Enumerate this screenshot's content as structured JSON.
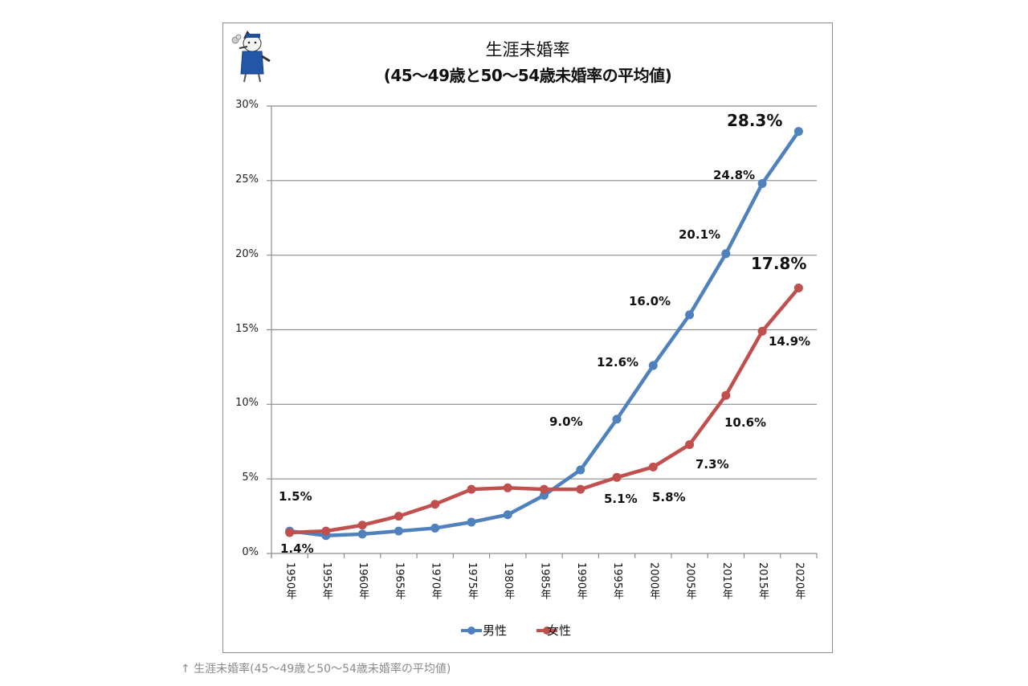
{
  "chart": {
    "title_line1": "生涯未婚率",
    "title_line2": "(45～49歳と50～54歳未婚率の平均値)",
    "mascot_icon": "cat-mascot-icon"
  },
  "caption": "↑ 生涯未婚率(45～49歳と50～54歳未婚率の平均値)",
  "legend": [
    {
      "label": "男性",
      "color": "#4f81bd"
    },
    {
      "label": "女性",
      "color": "#c0504d"
    }
  ],
  "y_ticks": [
    "0%",
    "5%",
    "10%",
    "15%",
    "20%",
    "25%",
    "30%"
  ],
  "x_ticks": [
    "1950年",
    "1955年",
    "1960年",
    "1965年",
    "1970年",
    "1975年",
    "1980年",
    "1985年",
    "1990年",
    "1995年",
    "2000年",
    "2005年",
    "2010年",
    "2015年",
    "2020年"
  ],
  "data_labels": {
    "male": {
      "1950": "1.5%",
      "1995": "9.0%",
      "2000": "12.6%",
      "2005": "16.0%",
      "2010": "20.1%",
      "2015": "24.8%",
      "2020": "28.3%"
    },
    "female": {
      "1950": "1.4%",
      "1995": "5.1%",
      "2000": "5.8%",
      "2005": "7.3%",
      "2010": "10.6%",
      "2015": "14.9%",
      "2020": "17.8%"
    }
  },
  "chart_data": {
    "type": "line",
    "title": "生涯未婚率 (45～49歳と50～54歳未婚率の平均値)",
    "xlabel": "",
    "ylabel": "",
    "categories": [
      "1950年",
      "1955年",
      "1960年",
      "1965年",
      "1970年",
      "1975年",
      "1980年",
      "1985年",
      "1990年",
      "1995年",
      "2000年",
      "2005年",
      "2010年",
      "2015年",
      "2020年"
    ],
    "series": [
      {
        "name": "男性",
        "color": "#4f81bd",
        "values": [
          1.5,
          1.2,
          1.3,
          1.5,
          1.7,
          2.1,
          2.6,
          3.9,
          5.6,
          9.0,
          12.6,
          16.0,
          20.1,
          24.8,
          28.3
        ]
      },
      {
        "name": "女性",
        "color": "#c0504d",
        "values": [
          1.4,
          1.5,
          1.9,
          2.5,
          3.3,
          4.3,
          4.4,
          4.3,
          4.3,
          5.1,
          5.8,
          7.3,
          10.6,
          14.9,
          17.8
        ]
      }
    ],
    "ylim": [
      0,
      30
    ],
    "y_tick_format": "percent",
    "grid": true,
    "legend_position": "bottom"
  }
}
